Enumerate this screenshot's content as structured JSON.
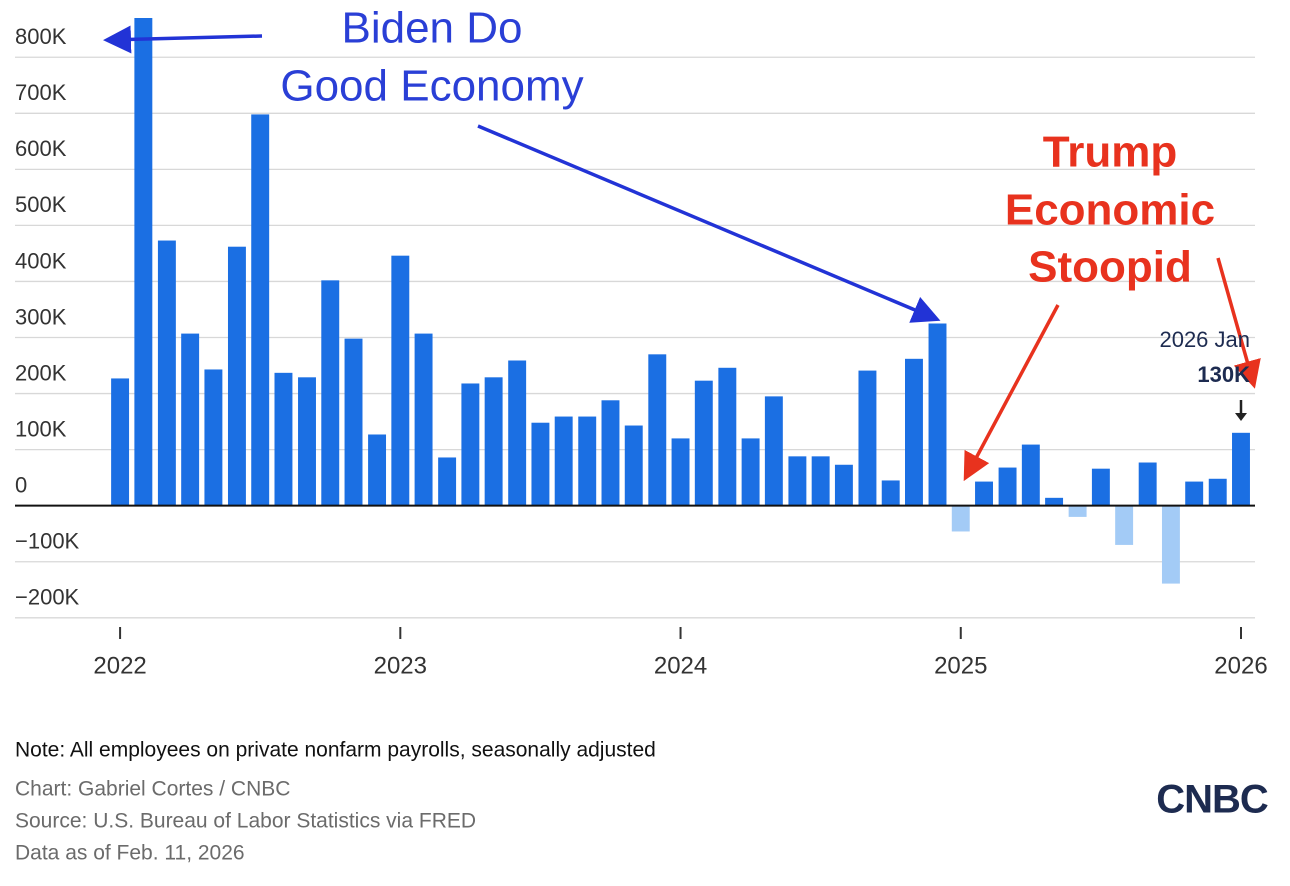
{
  "chart_data": {
    "type": "bar",
    "x": [
      2022,
      2022.083,
      2022.167,
      2022.25,
      2022.333,
      2022.417,
      2022.5,
      2022.583,
      2022.667,
      2022.75,
      2022.833,
      2022.917,
      2023,
      2023.083,
      2023.167,
      2023.25,
      2023.333,
      2023.417,
      2023.5,
      2023.583,
      2023.667,
      2023.75,
      2023.833,
      2023.917,
      2024,
      2024.083,
      2024.167,
      2024.25,
      2024.333,
      2024.417,
      2024.5,
      2024.583,
      2024.667,
      2024.75,
      2024.833,
      2024.917,
      2025,
      2025.083,
      2025.167,
      2025.25,
      2025.333,
      2025.417,
      2025.5,
      2025.583,
      2025.667,
      2025.75,
      2025.833,
      2025.917,
      2026
    ],
    "values": [
      227000,
      871000,
      473000,
      307000,
      243000,
      462000,
      698000,
      237000,
      229000,
      402000,
      298000,
      127000,
      446000,
      307000,
      86000,
      218000,
      229000,
      259000,
      148000,
      159000,
      159000,
      188000,
      143000,
      270000,
      120000,
      223000,
      246000,
      120000,
      195000,
      88000,
      88000,
      73000,
      241000,
      45000,
      262000,
      325000,
      -46000,
      43000,
      68000,
      109000,
      14000,
      -20000,
      66000,
      -70000,
      77000,
      -139000,
      43000,
      48000,
      130000
    ],
    "color": "#1b6fe3",
    "negative_color": "#a3cbf6",
    "ylim": [
      -220000,
      870000
    ],
    "yticks": [
      {
        "value": -200000,
        "label": "−200K"
      },
      {
        "value": -100000,
        "label": "−100K"
      },
      0,
      {
        "value": 100000,
        "label": "100K"
      },
      {
        "value": 200000,
        "label": "200K"
      },
      {
        "value": 300000,
        "label": "300K"
      },
      {
        "value": 400000,
        "label": "400K"
      },
      {
        "value": 500000,
        "label": "500K"
      },
      {
        "value": 600000,
        "label": "600K"
      },
      {
        "value": 700000,
        "label": "700K"
      },
      {
        "value": 800000,
        "label": "800K"
      }
    ],
    "xlim": [
      2021.6,
      2026.05
    ],
    "xticks": [
      2022,
      2023,
      2024,
      2025,
      2026
    ],
    "grid": true,
    "last_point": {
      "label": "2026 Jan",
      "value_label": "130K"
    },
    "annotations": {
      "biden": [
        "Biden Do",
        "Good Economy"
      ],
      "trump": [
        "Trump",
        "Economic",
        "Stoopid"
      ]
    },
    "note": "Note: All employees on private nonfarm payrolls, seasonally adjusted",
    "credit": "Chart: Gabriel Cortes / CNBC",
    "source": "Source: U.S. Bureau of Labor Statistics via FRED",
    "date": "Data as of Feb. 11, 2026",
    "logo": "CNBC"
  }
}
